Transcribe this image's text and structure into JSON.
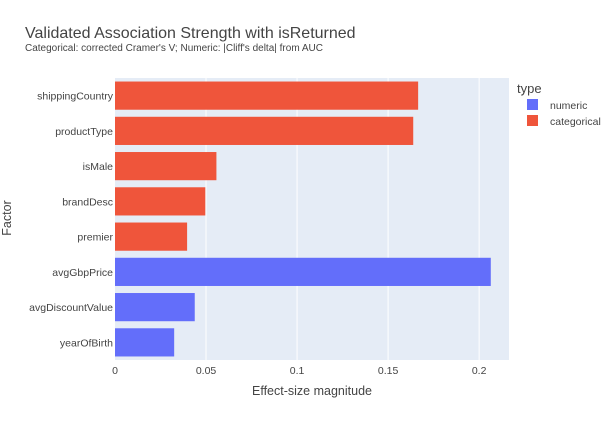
{
  "chart_data": {
    "type": "bar",
    "orientation": "horizontal",
    "title": "Validated Association Strength with isReturned",
    "subtitle": "Categorical: corrected Cramer's V; Numeric: |Cliff's delta| from AUC",
    "xlabel": "Effect-size magnitude",
    "ylabel": "Factor",
    "xlim": [
      0,
      0.2164
    ],
    "xticks": [
      0,
      0.05,
      0.1,
      0.15,
      0.2
    ],
    "xtick_labels": [
      "0",
      "0.05",
      "0.1",
      "0.15",
      "0.2"
    ],
    "grid": true,
    "legend_title": "type",
    "legend_position": "top-right",
    "categories": [
      "shippingCountry",
      "productType",
      "isMale",
      "brandDesc",
      "premier",
      "avgGbpPrice",
      "avgDiscountValue",
      "yearOfBirth"
    ],
    "values": [
      0.1665,
      0.1638,
      0.0557,
      0.0496,
      0.0396,
      0.2064,
      0.0438,
      0.0325
    ],
    "types": [
      "categorical",
      "categorical",
      "categorical",
      "categorical",
      "categorical",
      "numeric",
      "numeric",
      "numeric"
    ],
    "series": [
      {
        "name": "numeric",
        "color": "#636efa"
      },
      {
        "name": "categorical",
        "color": "#ef553b"
      }
    ],
    "plot_background": "#e5ecf6",
    "gridline_color": "#ffffff"
  }
}
